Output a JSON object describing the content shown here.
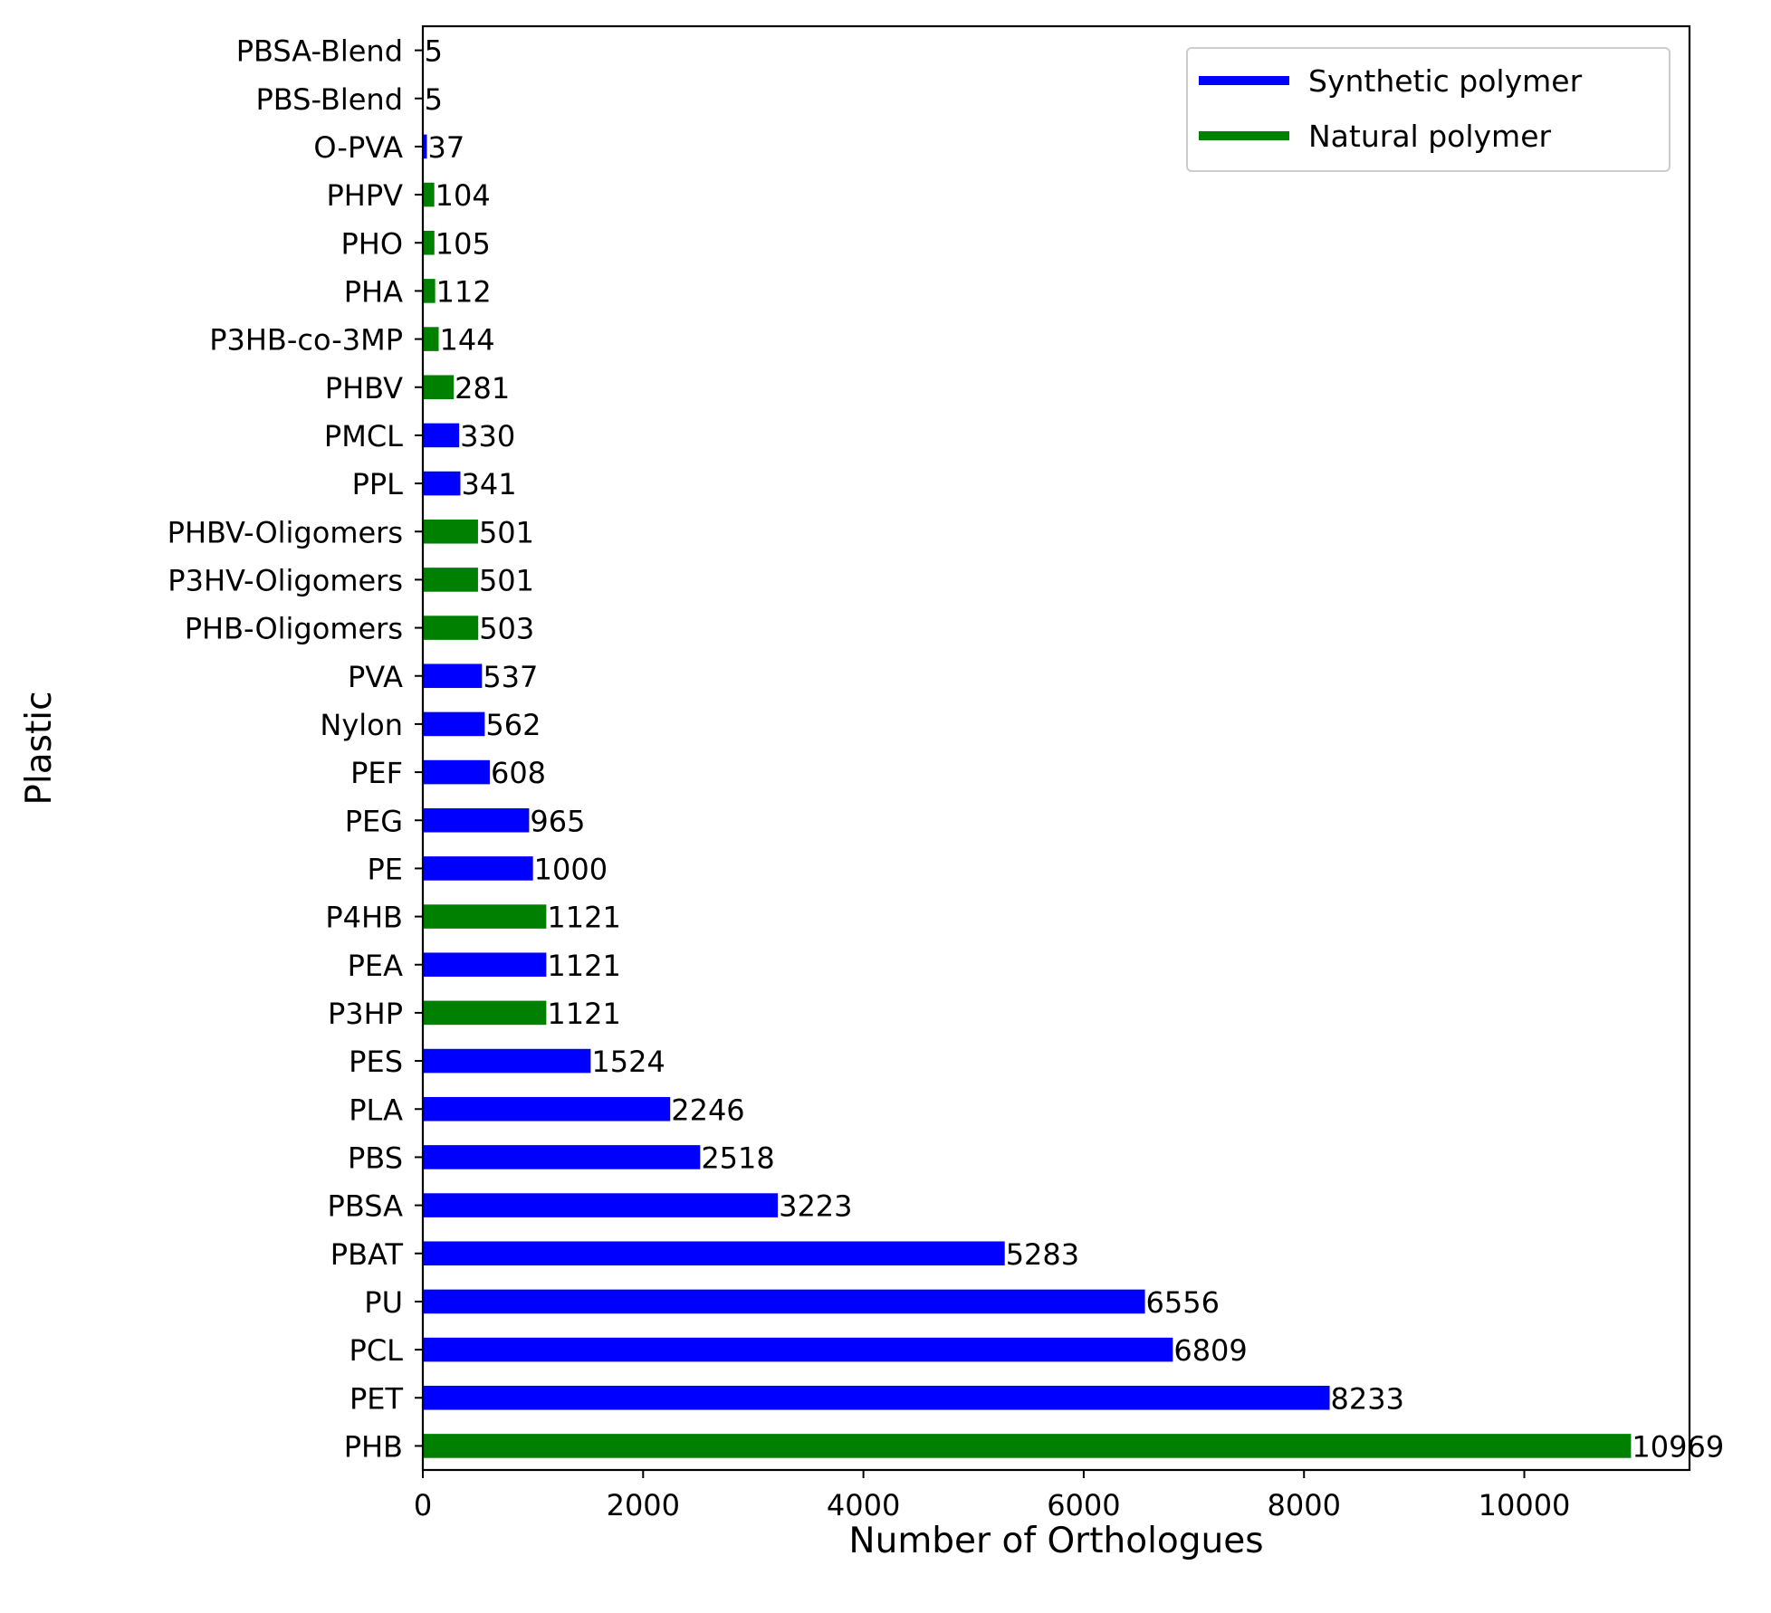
{
  "chart_data": {
    "type": "bar",
    "orientation": "horizontal",
    "xlabel": "Number of Orthologues",
    "ylabel": "Plastic",
    "xlim": [
      0,
      11500
    ],
    "xticks": [
      0,
      2000,
      4000,
      6000,
      8000,
      10000
    ],
    "grid": false,
    "legend_position": "top-right",
    "legend": [
      {
        "label": "Synthetic polymer",
        "color": "#0000ff"
      },
      {
        "label": "Natural polymer",
        "color": "#008000"
      }
    ],
    "categories": [
      "PHB",
      "PET",
      "PCL",
      "PU",
      "PBAT",
      "PBSA",
      "PBS",
      "PLA",
      "PES",
      "P3HP",
      "PEA",
      "P4HB",
      "PE",
      "PEG",
      "PEF",
      "Nylon",
      "PVA",
      "PHB-Oligomers",
      "P3HV-Oligomers",
      "PHBV-Oligomers",
      "PPL",
      "PMCL",
      "PHBV",
      "P3HB-co-3MP",
      "PHA",
      "PHO",
      "PHPV",
      "O-PVA",
      "PBS-Blend",
      "PBSA-Blend"
    ],
    "values": [
      10969,
      8233,
      6809,
      6556,
      5283,
      3223,
      2518,
      2246,
      1524,
      1121,
      1121,
      1121,
      1000,
      965,
      608,
      562,
      537,
      503,
      501,
      501,
      341,
      330,
      281,
      144,
      112,
      105,
      104,
      37,
      5,
      5
    ],
    "polymer_type": [
      "Natural polymer",
      "Synthetic polymer",
      "Synthetic polymer",
      "Synthetic polymer",
      "Synthetic polymer",
      "Synthetic polymer",
      "Synthetic polymer",
      "Synthetic polymer",
      "Synthetic polymer",
      "Natural polymer",
      "Synthetic polymer",
      "Natural polymer",
      "Synthetic polymer",
      "Synthetic polymer",
      "Synthetic polymer",
      "Synthetic polymer",
      "Synthetic polymer",
      "Natural polymer",
      "Natural polymer",
      "Natural polymer",
      "Synthetic polymer",
      "Synthetic polymer",
      "Natural polymer",
      "Natural polymer",
      "Natural polymer",
      "Natural polymer",
      "Natural polymer",
      "Synthetic polymer",
      "Synthetic polymer",
      "Synthetic polymer"
    ]
  }
}
